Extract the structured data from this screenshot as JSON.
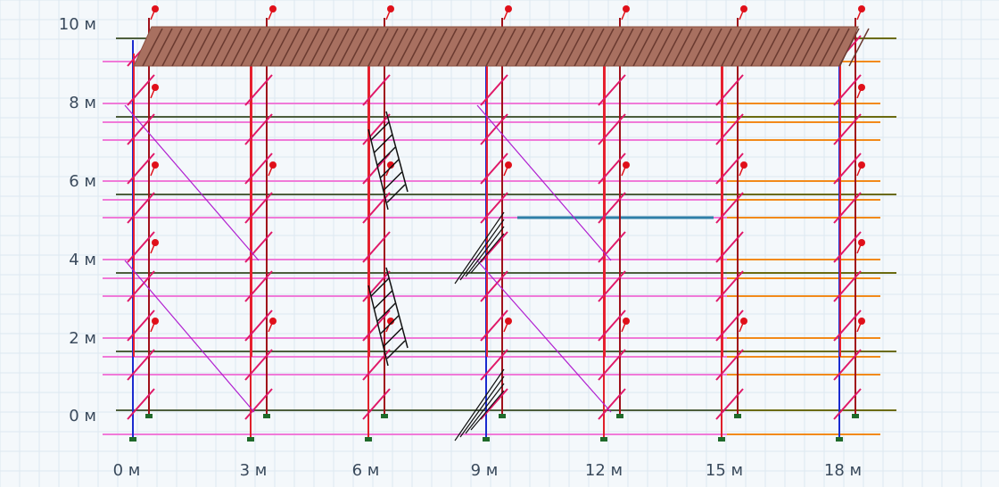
{
  "axes": {
    "y_labels": [
      "10 м",
      "8 м",
      "6 м",
      "4 м",
      "2 м",
      "0 м"
    ],
    "x_labels": [
      "0 м",
      "3 м",
      "6 м",
      "9 м",
      "12 м",
      "15 м",
      "18 м"
    ]
  }
}
